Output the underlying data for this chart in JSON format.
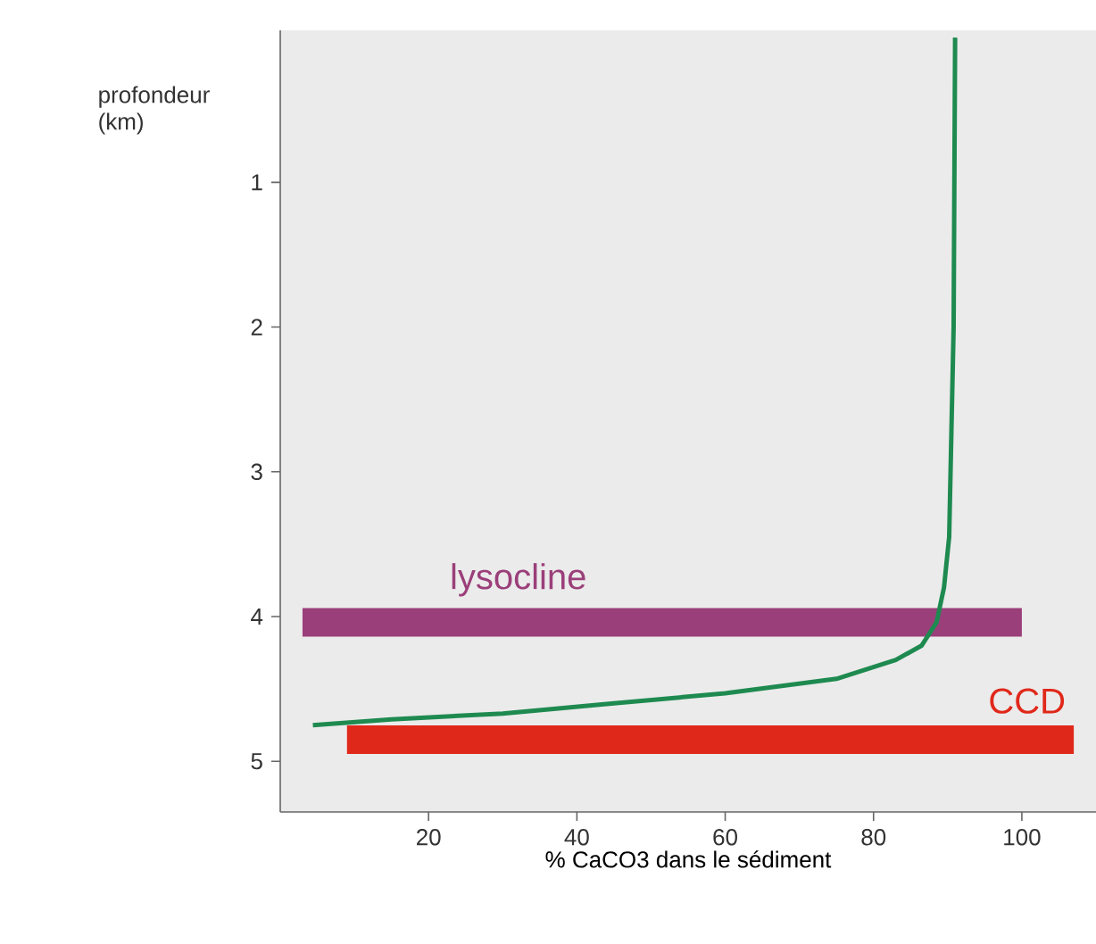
{
  "chart_data": {
    "type": "line",
    "xlabel": "% CaCO3 dans le sédiment",
    "ylabel": "profondeur (km)",
    "xlim": [
      0,
      110
    ],
    "ylim": [
      5.35,
      -0.05
    ],
    "xticks": [
      20,
      40,
      60,
      80,
      100
    ],
    "yticks": [
      1,
      2,
      3,
      4,
      5
    ],
    "series": [
      {
        "color": "#1e8a50",
        "x": [
          91,
          90.8,
          90.2,
          89.5,
          88.5,
          86.5,
          83,
          75,
          60,
          45,
          30,
          15,
          4.4
        ],
        "values": [
          0,
          2.0,
          3.45,
          3.8,
          4.04,
          4.2,
          4.3,
          4.43,
          4.53,
          4.6,
          4.67,
          4.71,
          4.75
        ]
      },
      {
        "name": "lysocline",
        "color": "#9b3f7a",
        "x": [
          3,
          100
        ],
        "values": [
          4.04,
          4.04
        ]
      },
      {
        "name": "CCD",
        "color": "#e0281a",
        "x": [
          9,
          107
        ],
        "values": [
          4.85,
          4.85
        ]
      }
    ]
  }
}
